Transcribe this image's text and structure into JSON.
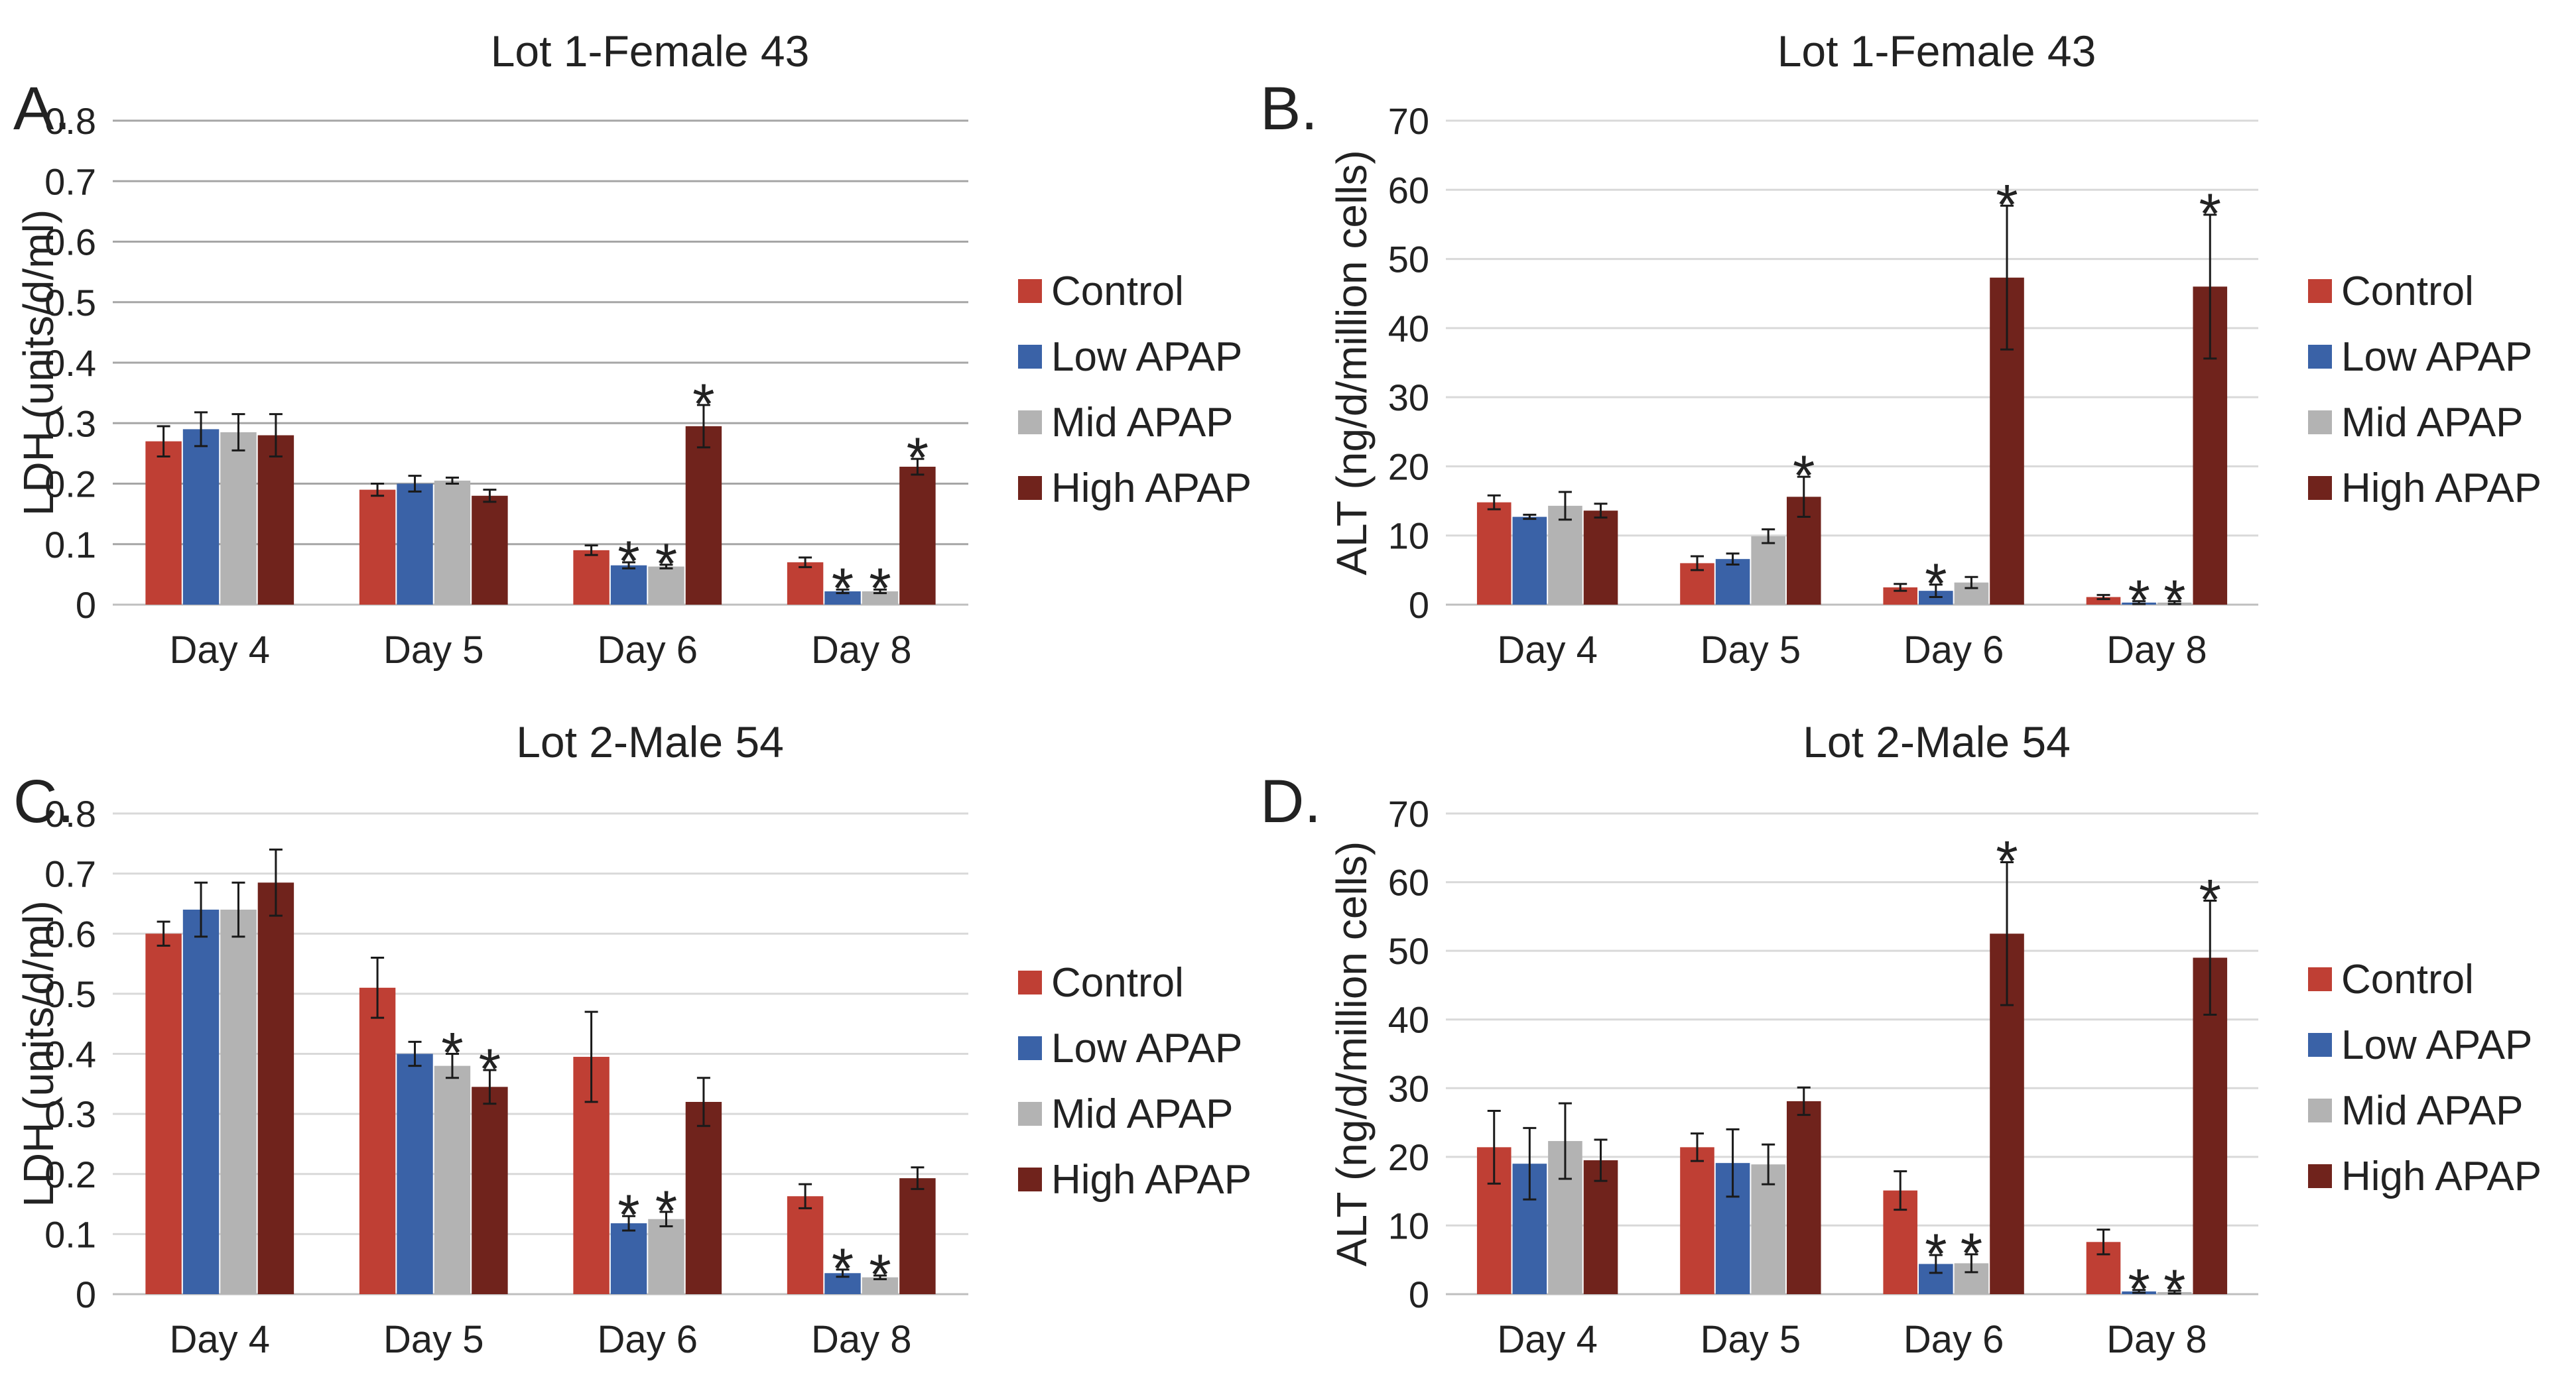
{
  "colors": {
    "control": "#bf3f34",
    "low": "#3a62a7",
    "mid": "#b3b3b3",
    "high": "#70231c"
  },
  "chart_data": [
    {
      "panel": "A.",
      "type": "bar",
      "title": "Lot 1-Female 43",
      "ylabel": "LDH (units/d/ml)",
      "ylim": [
        0,
        0.8
      ],
      "yticks": [
        "0",
        "0.1",
        "0.2",
        "0.3",
        "0.4",
        "0.5",
        "0.6",
        "0.7",
        "0.8"
      ],
      "grid": "dark",
      "categories": [
        "Day 4",
        "Day 5",
        "Day 6",
        "Day 8"
      ],
      "series": [
        {
          "name": "Control",
          "color": "#bf3f34",
          "values": [
            0.27,
            0.19,
            0.09,
            0.07
          ],
          "errors": [
            0.025,
            0.01,
            0.008,
            0.008
          ],
          "stars": [
            "",
            "",
            "",
            ""
          ]
        },
        {
          "name": "Low APAP",
          "color": "#3a62a7",
          "values": [
            0.29,
            0.2,
            0.065,
            0.022
          ],
          "errors": [
            0.028,
            0.013,
            0.005,
            0.003
          ],
          "stars": [
            "",
            "",
            "*",
            "*"
          ]
        },
        {
          "name": "Mid APAP",
          "color": "#b3b3b3",
          "values": [
            0.285,
            0.205,
            0.063,
            0.022
          ],
          "errors": [
            0.03,
            0.005,
            0.003,
            0.003
          ],
          "stars": [
            "",
            "",
            "*",
            "*"
          ]
        },
        {
          "name": "High APAP",
          "color": "#70231c",
          "values": [
            0.28,
            0.18,
            0.295,
            0.228
          ],
          "errors": [
            0.035,
            0.01,
            0.035,
            0.013
          ],
          "stars": [
            "",
            "",
            "*",
            "*"
          ]
        }
      ]
    },
    {
      "panel": "B.",
      "type": "bar",
      "title": "Lot 1-Female 43",
      "ylabel": "ALT (ng/d/million cells)",
      "ylim": [
        0,
        70
      ],
      "yticks": [
        "0",
        "10",
        "20",
        "30",
        "40",
        "50",
        "60",
        "70"
      ],
      "grid": "light",
      "categories": [
        "Day 4",
        "Day 5",
        "Day 6",
        "Day 8"
      ],
      "series": [
        {
          "name": "Control",
          "color": "#bf3f34",
          "values": [
            14.8,
            6.0,
            2.5,
            1.1
          ],
          "errors": [
            1.0,
            1.0,
            0.5,
            0.3
          ],
          "stars": [
            "",
            "",
            "",
            ""
          ]
        },
        {
          "name": "Low APAP",
          "color": "#3a62a7",
          "values": [
            12.7,
            6.6,
            2.0,
            0.3
          ],
          "errors": [
            0.3,
            0.8,
            0.9,
            0.2
          ],
          "stars": [
            "",
            "",
            "*",
            "*"
          ]
        },
        {
          "name": "Mid APAP",
          "color": "#b3b3b3",
          "values": [
            14.3,
            9.9,
            3.2,
            0.3
          ],
          "errors": [
            2.0,
            1.0,
            0.8,
            0.2
          ],
          "stars": [
            "",
            "",
            "",
            "*"
          ]
        },
        {
          "name": "High APAP",
          "color": "#70231c",
          "values": [
            13.6,
            15.6,
            47.3,
            46.0
          ],
          "errors": [
            1.0,
            2.9,
            10.4,
            10.4
          ],
          "stars": [
            "",
            "*",
            "*",
            "*"
          ]
        }
      ]
    },
    {
      "panel": "C.",
      "type": "bar",
      "title": "Lot 2-Male 54",
      "ylabel": "LDH (units/d/ml)",
      "ylim": [
        0,
        0.8
      ],
      "yticks": [
        "0",
        "0.1",
        "0.2",
        "0.3",
        "0.4",
        "0.5",
        "0.6",
        "0.7",
        "0.8"
      ],
      "grid": "light",
      "categories": [
        "Day 4",
        "Day 5",
        "Day 6",
        "Day 8"
      ],
      "series": [
        {
          "name": "Control",
          "color": "#bf3f34",
          "values": [
            0.6,
            0.51,
            0.395,
            0.163
          ],
          "errors": [
            0.02,
            0.05,
            0.075,
            0.02
          ],
          "stars": [
            "",
            "",
            "",
            ""
          ]
        },
        {
          "name": "Low APAP",
          "color": "#3a62a7",
          "values": [
            0.64,
            0.4,
            0.118,
            0.035
          ],
          "errors": [
            0.045,
            0.02,
            0.012,
            0.006
          ],
          "stars": [
            "",
            "",
            "*",
            "*"
          ]
        },
        {
          "name": "Mid APAP",
          "color": "#b3b3b3",
          "values": [
            0.64,
            0.38,
            0.125,
            0.028
          ],
          "errors": [
            0.045,
            0.02,
            0.012,
            0.003
          ],
          "stars": [
            "",
            "*",
            "*",
            "*"
          ]
        },
        {
          "name": "High APAP",
          "color": "#70231c",
          "values": [
            0.685,
            0.345,
            0.32,
            0.193
          ],
          "errors": [
            0.055,
            0.028,
            0.04,
            0.018
          ],
          "stars": [
            "",
            "*",
            "",
            ""
          ]
        }
      ]
    },
    {
      "panel": "D.",
      "type": "bar",
      "title": "Lot 2-Male 54",
      "ylabel": "ALT (ng/d/million cells)",
      "ylim": [
        0,
        70
      ],
      "yticks": [
        "0",
        "10",
        "20",
        "30",
        "40",
        "50",
        "60",
        "70"
      ],
      "grid": "light",
      "categories": [
        "Day 4",
        "Day 5",
        "Day 6",
        "Day 8"
      ],
      "series": [
        {
          "name": "Control",
          "color": "#bf3f34",
          "values": [
            21.4,
            21.4,
            15.1,
            7.6
          ],
          "errors": [
            5.3,
            2.0,
            2.8,
            1.8
          ],
          "stars": [
            "",
            "",
            "",
            ""
          ]
        },
        {
          "name": "Low APAP",
          "color": "#3a62a7",
          "values": [
            19.0,
            19.1,
            4.4,
            0.4
          ],
          "errors": [
            5.2,
            4.9,
            1.3,
            0.2
          ],
          "stars": [
            "",
            "",
            "*",
            "*"
          ]
        },
        {
          "name": "Mid APAP",
          "color": "#b3b3b3",
          "values": [
            22.3,
            18.9,
            4.5,
            0.3
          ],
          "errors": [
            5.5,
            2.9,
            1.3,
            0.2
          ],
          "stars": [
            "",
            "",
            "*",
            "*"
          ]
        },
        {
          "name": "High APAP",
          "color": "#70231c",
          "values": [
            19.5,
            28.1,
            52.5,
            49.0
          ],
          "errors": [
            3.0,
            2.0,
            10.4,
            8.3
          ],
          "stars": [
            "",
            "",
            "*",
            "*"
          ]
        }
      ]
    }
  ]
}
